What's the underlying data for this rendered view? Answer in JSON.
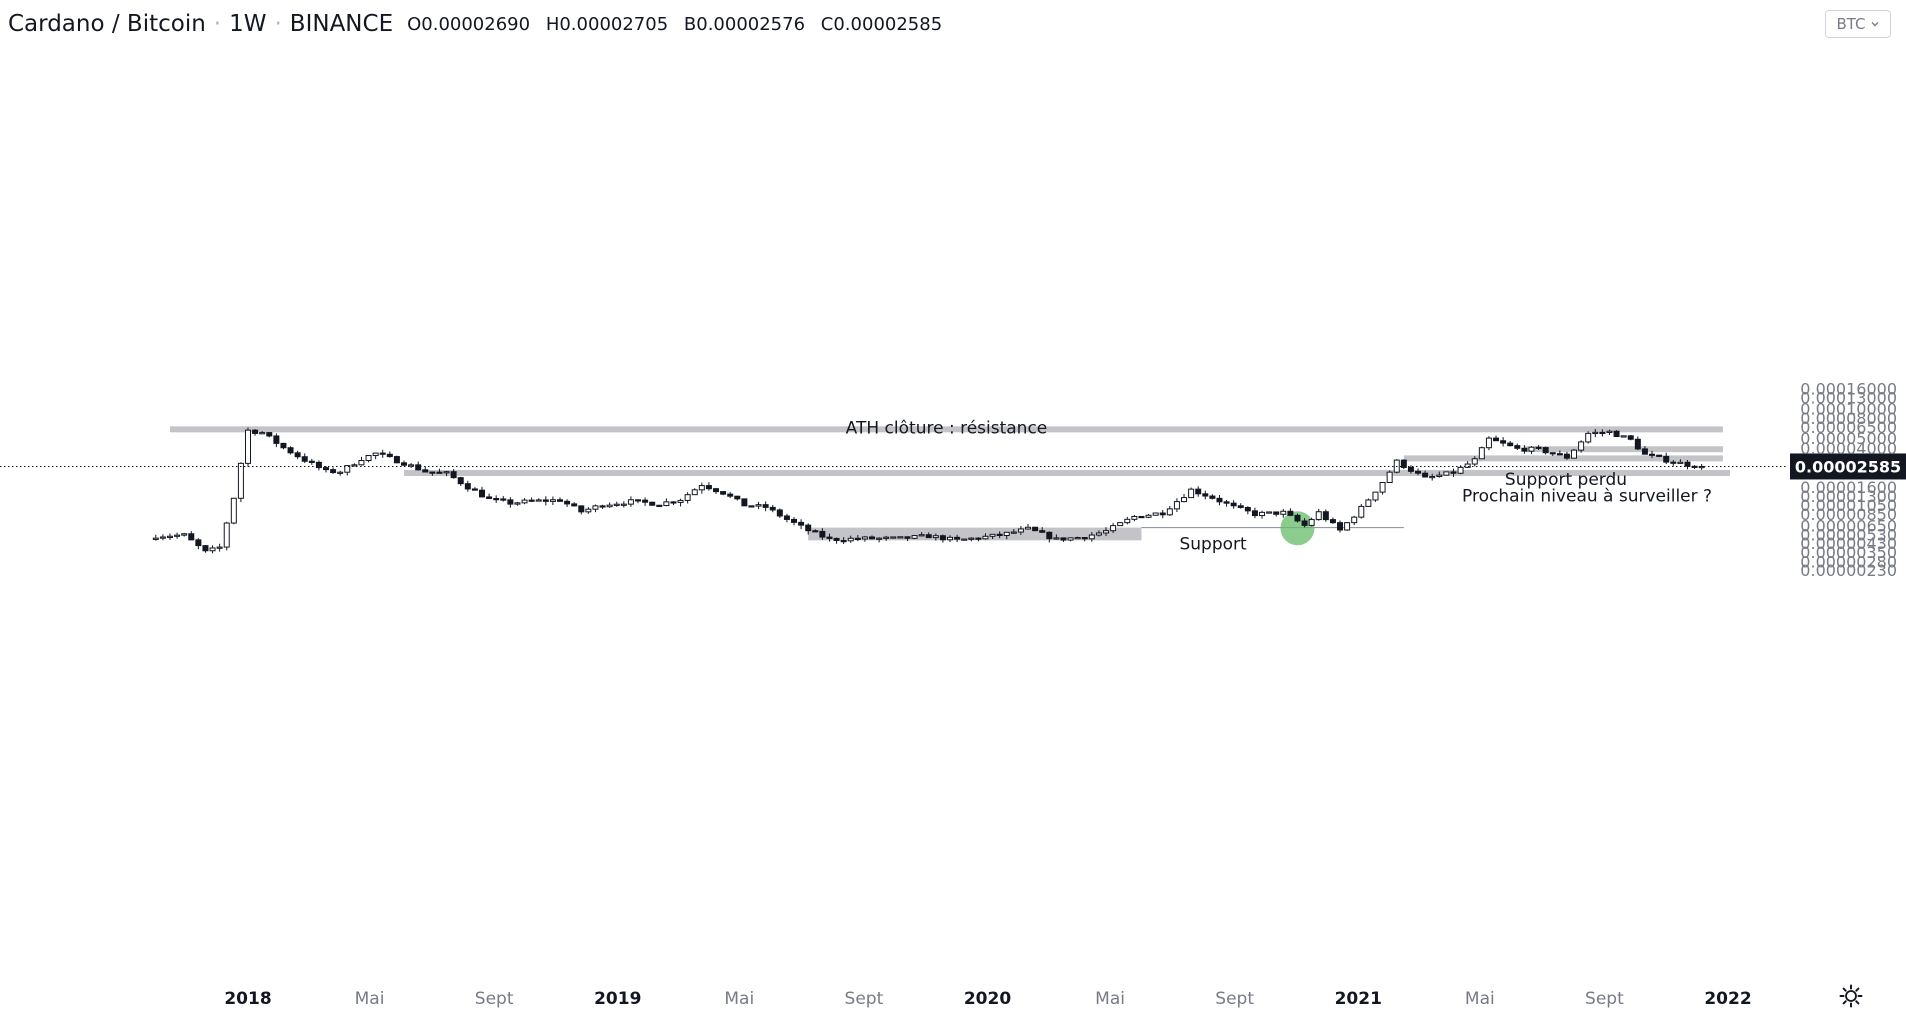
{
  "header": {
    "symbol": "Cardano / Bitcoin",
    "interval": "1W",
    "exchange": "BINANCE",
    "ohlc": [
      {
        "k": "O",
        "v": "0.00002690"
      },
      {
        "k": "H",
        "v": "0.00002705"
      },
      {
        "k": "B",
        "v": "0.00002576"
      },
      {
        "k": "C",
        "v": "0.00002585"
      }
    ]
  },
  "currency_button": {
    "label": "BTC",
    "icon": "chevron-down-icon"
  },
  "settings": {
    "icon": "gear-icon"
  },
  "colors": {
    "candle": "#131722",
    "zone": "#c4c4c8",
    "support_line": "#9598a1",
    "highlight": "#66bb6a",
    "price_tag_bg": "#131722",
    "price_tag_text": "#ffffff",
    "axis_text": "#787b86"
  },
  "chart_data": {
    "type": "candlestick",
    "scale": "log",
    "title": "Cardano / Bitcoin",
    "y_unit": "BTC",
    "ylim": [
      2.2e-06,
      0.00016
    ],
    "y_ticks": [
      "0.00000230",
      "0.00000280",
      "0.00000350",
      "0.00000430",
      "0.00000530",
      "0.00000650",
      "0.00000850",
      "0.00001050",
      "0.00001300",
      "0.00001600",
      "0.00002000",
      "0.00003200",
      "0.00004000",
      "0.00005000",
      "0.00006500",
      "0.00008000",
      "0.00010000",
      "0.00013000",
      "0.00016000"
    ],
    "x_ticks": [
      {
        "label": "2018",
        "date": "2018-01-01",
        "bold": true
      },
      {
        "label": "Mai",
        "date": "2018-05-01",
        "bold": false
      },
      {
        "label": "Sept",
        "date": "2018-09-01",
        "bold": false
      },
      {
        "label": "2019",
        "date": "2019-01-01",
        "bold": true
      },
      {
        "label": "Mai",
        "date": "2019-05-01",
        "bold": false
      },
      {
        "label": "Sept",
        "date": "2019-09-01",
        "bold": false
      },
      {
        "label": "2020",
        "date": "2020-01-01",
        "bold": true
      },
      {
        "label": "Mai",
        "date": "2020-05-01",
        "bold": false
      },
      {
        "label": "Sept",
        "date": "2020-09-01",
        "bold": false
      },
      {
        "label": "2021",
        "date": "2021-01-01",
        "bold": true
      },
      {
        "label": "Mai",
        "date": "2021-05-01",
        "bold": false
      },
      {
        "label": "Sept",
        "date": "2021-09-01",
        "bold": false
      },
      {
        "label": "2022",
        "date": "2022-01-01",
        "bold": true
      }
    ],
    "current_price": "0.00002585",
    "close_path": [
      [
        "2017-10-02",
        5.1e-06
      ],
      [
        "2017-10-30",
        5.2e-06
      ],
      [
        "2017-11-20",
        3.5e-06
      ],
      [
        "2017-12-04",
        3.9e-06
      ],
      [
        "2017-12-18",
        1.25e-05
      ],
      [
        "2017-12-25",
        2.8e-05
      ],
      [
        "2018-01-01",
        6e-05
      ],
      [
        "2018-01-15",
        5.7e-05
      ],
      [
        "2018-02-05",
        4e-05
      ],
      [
        "2018-02-26",
        3e-05
      ],
      [
        "2018-03-19",
        2.3e-05
      ],
      [
        "2018-04-02",
        2.3e-05
      ],
      [
        "2018-04-23",
        3.1e-05
      ],
      [
        "2018-05-07",
        3.5e-05
      ],
      [
        "2018-06-04",
        2.8e-05
      ],
      [
        "2018-06-25",
        2.3e-05
      ],
      [
        "2018-07-16",
        2.2e-05
      ],
      [
        "2018-08-06",
        1.6e-05
      ],
      [
        "2018-08-27",
        1.2e-05
      ],
      [
        "2018-09-17",
        1.1e-05
      ],
      [
        "2018-10-08",
        1.15e-05
      ],
      [
        "2018-11-05",
        1.18e-05
      ],
      [
        "2018-11-26",
        9e-06
      ],
      [
        "2018-12-17",
        1.06e-05
      ],
      [
        "2019-01-14",
        1.14e-05
      ],
      [
        "2019-02-11",
        1.08e-05
      ],
      [
        "2019-03-04",
        1.2e-05
      ],
      [
        "2019-03-25",
        1.7e-05
      ],
      [
        "2019-04-15",
        1.4e-05
      ],
      [
        "2019-05-06",
        1.05e-05
      ],
      [
        "2019-05-27",
        1e-05
      ],
      [
        "2019-06-17",
        7.5e-06
      ],
      [
        "2019-07-08",
        5.8e-06
      ],
      [
        "2019-07-29",
        4.7e-06
      ],
      [
        "2019-09-02",
        4.8e-06
      ],
      [
        "2019-10-07",
        4.8e-06
      ],
      [
        "2019-11-04",
        5.1e-06
      ],
      [
        "2019-12-02",
        4.6e-06
      ],
      [
        "2020-01-13",
        5.2e-06
      ],
      [
        "2020-02-10",
        6e-06
      ],
      [
        "2020-03-09",
        4.7e-06
      ],
      [
        "2020-04-06",
        5e-06
      ],
      [
        "2020-04-27",
        5.7e-06
      ],
      [
        "2020-05-25",
        8e-06
      ],
      [
        "2020-06-22",
        8.8e-06
      ],
      [
        "2020-07-20",
        1.5e-05
      ],
      [
        "2020-08-10",
        1.25e-05
      ],
      [
        "2020-08-31",
        1e-05
      ],
      [
        "2020-09-21",
        8.5e-06
      ],
      [
        "2020-10-19",
        8.8e-06
      ],
      [
        "2020-11-09",
        6.5e-06
      ],
      [
        "2020-11-23",
        8.8e-06
      ],
      [
        "2020-12-14",
        5.8e-06
      ],
      [
        "2021-01-04",
        9.8e-06
      ],
      [
        "2021-01-25",
        1.8e-05
      ],
      [
        "2021-02-08",
        2.9e-05
      ],
      [
        "2021-03-08",
        1.95e-05
      ],
      [
        "2021-04-05",
        2.25e-05
      ],
      [
        "2021-04-26",
        3e-05
      ],
      [
        "2021-05-10",
        4.9e-05
      ],
      [
        "2021-06-07",
        3.9e-05
      ],
      [
        "2021-06-28",
        3.85e-05
      ],
      [
        "2021-07-26",
        3.2e-05
      ],
      [
        "2021-08-16",
        5.6e-05
      ],
      [
        "2021-09-06",
        5.8e-05
      ],
      [
        "2021-09-27",
        4.8e-05
      ],
      [
        "2021-10-11",
        3.4e-05
      ],
      [
        "2021-11-01",
        3e-05
      ],
      [
        "2021-11-22",
        2.7e-05
      ],
      [
        "2021-12-06",
        2.585e-05
      ]
    ],
    "annotations": [
      {
        "label": "ATH clôture : résistance",
        "kind": "zone",
        "from": "2017-10-16",
        "to": "2021-12-27",
        "low": 6.2e-05,
        "high": 6.6e-05
      },
      {
        "label": "Prochain niveau à surveiller ?",
        "kind": "zone",
        "from": "2018-06-04",
        "to": "2022-01-03",
        "low": 2.25e-05,
        "high": 2.38e-05
      },
      {
        "label": "Support perdu",
        "kind": "zone",
        "from": "2021-02-15",
        "to": "2021-12-27",
        "low": 3.15e-05,
        "high": 3.35e-05
      },
      {
        "label": "",
        "kind": "zone",
        "from": "2021-06-14",
        "to": "2021-12-27",
        "low": 3.8e-05,
        "high": 4.15e-05
      },
      {
        "label": "",
        "kind": "zone",
        "from": "2019-07-08",
        "to": "2020-06-01",
        "low": 4.6e-06,
        "high": 6.2e-06
      },
      {
        "label": "Support",
        "kind": "line",
        "from": "2020-06-01",
        "to": "2021-02-15",
        "value": 6.2e-06
      }
    ],
    "highlight_point": {
      "date": "2020-11-02",
      "value": 6.1e-06
    }
  }
}
